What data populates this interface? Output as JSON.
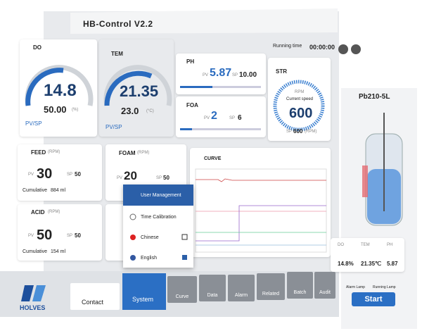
{
  "header": {
    "title": "HB-Control V2.2",
    "running_time_label": "Running time",
    "running_time": "00:00:00"
  },
  "panels": {
    "do": {
      "name": "DO",
      "pv": "14.8",
      "sp": "50.00",
      "unit": "(%)",
      "pv_sp": "PV/SP"
    },
    "tem": {
      "name": "TEM",
      "pv": "21.35",
      "sp": "23.0",
      "unit": "(°C)",
      "pv_sp": "PV/SP"
    },
    "ph": {
      "name": "PH",
      "pv_label": "PV",
      "pv": "5.87",
      "sp_label": "SP",
      "sp": "10.00"
    },
    "foa": {
      "name": "FOA",
      "pv_label": "PV",
      "pv": "2",
      "sp_label": "SP",
      "sp": "6"
    },
    "str": {
      "name": "STR",
      "rpm": "RPM",
      "caption": "Current speed",
      "pv": "600",
      "sp_label": "SP",
      "sp": "600",
      "unit": "(RPM)"
    },
    "feed": {
      "name": "FEED",
      "unit": "(RPM)",
      "pv_label": "PV",
      "pv": "30",
      "sp_label": "SP",
      "sp": "50",
      "cumulative_label": "Cumulative",
      "cumulative": "884 ml"
    },
    "foam": {
      "name": "FOAM",
      "unit": "(RPM)",
      "pv_label": "PV",
      "pv": "20",
      "sp_label": "SP",
      "sp": "50"
    },
    "acid": {
      "name": "ACID",
      "unit": "(RPM)",
      "pv_label": "PV",
      "pv": "50",
      "sp_label": "SP",
      "sp": "50",
      "cumulative_label": "Cumulative",
      "cumulative": "154 ml"
    },
    "curve": {
      "name": "CURVE"
    }
  },
  "menu": [
    "User Management",
    "Time Calibration",
    "Chinese",
    "English"
  ],
  "reactor": {
    "model": "Pb210-5L",
    "readings": [
      {
        "label": "DO",
        "value": "14.8%"
      },
      {
        "label": "TEM",
        "value": "21.35℃"
      },
      {
        "label": "PH",
        "value": "5.87"
      }
    ]
  },
  "nav": {
    "logo": "HOLVES",
    "items": [
      "Contact",
      "System",
      "Curve",
      "Data",
      "Alarm",
      "Related",
      "Batch",
      "Audit"
    ]
  },
  "lamps": [
    "Alarm Lamp",
    "Running Lamp"
  ],
  "start": "Start"
}
